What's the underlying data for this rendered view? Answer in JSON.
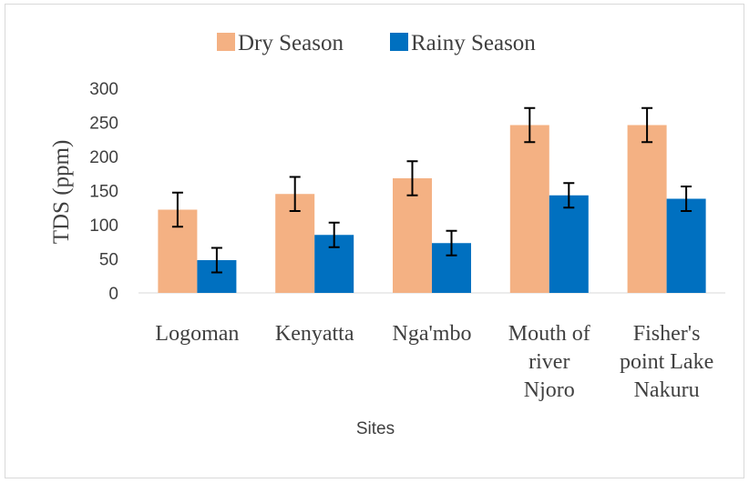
{
  "chart_data": {
    "type": "bar",
    "title": "",
    "xlabel": "Sites",
    "ylabel": "TDS (ppm)",
    "ylim": [
      0,
      300
    ],
    "yticks": [
      0,
      50,
      100,
      150,
      200,
      250,
      300
    ],
    "grid": false,
    "legend_position": "top-center",
    "categories": [
      [
        "Logoman"
      ],
      [
        "Kenyatta"
      ],
      [
        "Nga'mbo"
      ],
      [
        "Mouth of",
        "river",
        "Njoro"
      ],
      [
        "Fisher's",
        "point Lake",
        "Nakuru"
      ]
    ],
    "series": [
      {
        "name": "Dry Season",
        "color": "#f4b183",
        "values": [
          122,
          145,
          168,
          246,
          246
        ],
        "errors": [
          25,
          25,
          25,
          25,
          25
        ]
      },
      {
        "name": "Rainy Season",
        "color": "#0070c0",
        "values": [
          48,
          85,
          73,
          143,
          138
        ],
        "errors": [
          18,
          18,
          18,
          18,
          18
        ]
      }
    ]
  }
}
